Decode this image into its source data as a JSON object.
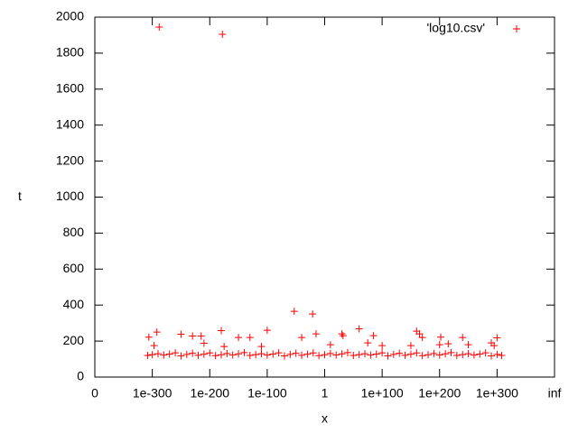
{
  "chart_data": {
    "type": "scatter",
    "xlabel": "x",
    "ylabel": "t",
    "xlim": [
      -400,
      400
    ],
    "xticks": [
      {
        "value": -400,
        "label": "0"
      },
      {
        "value": -300,
        "label": "1e-300"
      },
      {
        "value": -200,
        "label": "1e-200"
      },
      {
        "value": -100,
        "label": "1e-100"
      },
      {
        "value": 0,
        "label": "1"
      },
      {
        "value": 100,
        "label": "1e+100"
      },
      {
        "value": 200,
        "label": "1e+200"
      },
      {
        "value": 300,
        "label": "1e+300"
      },
      {
        "value": 400,
        "label": "inf"
      }
    ],
    "ylim": [
      0,
      2000
    ],
    "yticks": [
      0,
      200,
      400,
      600,
      800,
      1000,
      1200,
      1400,
      1600,
      1800,
      2000
    ],
    "legend": "top-right",
    "series": [
      {
        "name": "'log10.csv'",
        "color": "#ff0000",
        "x": [
          -308,
          -300,
          -290,
          -280,
          -270,
          -260,
          -250,
          -240,
          -230,
          -220,
          -210,
          -200,
          -190,
          -180,
          -170,
          -160,
          -150,
          -140,
          -130,
          -120,
          -110,
          -100,
          -90,
          -80,
          -70,
          -60,
          -50,
          -40,
          -30,
          -20,
          -10,
          0,
          10,
          20,
          30,
          40,
          50,
          60,
          70,
          80,
          90,
          100,
          110,
          120,
          130,
          140,
          150,
          160,
          170,
          180,
          190,
          200,
          210,
          220,
          230,
          240,
          250,
          260,
          270,
          280,
          290,
          300,
          308,
          -306,
          -292,
          -297,
          -288,
          -250,
          -230,
          -215,
          -210,
          -178,
          -180,
          -175,
          -150,
          -130,
          -110,
          -100,
          -53,
          -40,
          -21,
          -15,
          10,
          30,
          32,
          60,
          75,
          85,
          100,
          150,
          160,
          165,
          170,
          200,
          202,
          215,
          240,
          250,
          290,
          300,
          295
        ],
        "values": [
          120,
          125,
          130,
          122,
          128,
          135,
          118,
          126,
          132,
          121,
          127,
          134,
          119,
          124,
          131,
          123,
          129,
          136,
          120,
          125,
          130,
          122,
          128,
          135,
          118,
          126,
          132,
          121,
          127,
          134,
          119,
          124,
          131,
          123,
          129,
          136,
          120,
          125,
          130,
          122,
          128,
          135,
          118,
          126,
          132,
          121,
          127,
          134,
          119,
          124,
          131,
          123,
          129,
          136,
          120,
          125,
          130,
          122,
          128,
          135,
          118,
          126,
          120,
          222,
          250,
          175,
          1945,
          238,
          228,
          228,
          188,
          1905,
          258,
          170,
          220,
          220,
          170,
          260,
          365,
          220,
          350,
          240,
          180,
          240,
          230,
          268,
          190,
          230,
          175,
          175,
          255,
          240,
          220,
          180,
          222,
          185,
          220,
          180,
          190,
          218,
          175
        ]
      }
    ]
  }
}
